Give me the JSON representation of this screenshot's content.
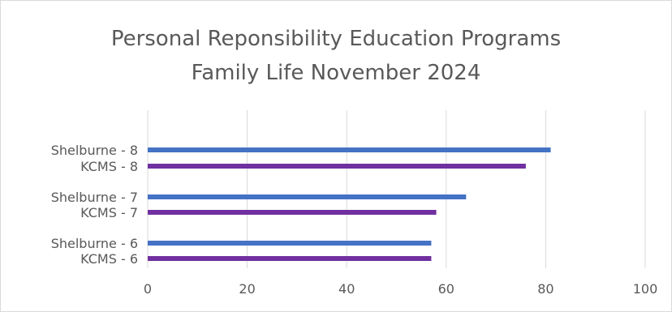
{
  "chart_data": {
    "type": "bar",
    "orientation": "horizontal",
    "title_lines": [
      "Personal Reponsibility Education Programs",
      "Family Life November 2024"
    ],
    "categories": [
      "Shelburne - 8",
      "KCMS - 8",
      "Shelburne - 7",
      "KCMS - 7",
      "Shelburne - 6",
      "KCMS - 6"
    ],
    "values": [
      81,
      76,
      64,
      58,
      57,
      57
    ],
    "bar_colors": [
      "#4472c4",
      "#7030a0",
      "#4472c4",
      "#7030a0",
      "#4472c4",
      "#7030a0"
    ],
    "xlim": [
      0,
      100
    ],
    "xticks": [
      0,
      20,
      40,
      60,
      80,
      100
    ],
    "xlabel": "",
    "ylabel": "",
    "grid": "vertical",
    "legend": "none"
  }
}
